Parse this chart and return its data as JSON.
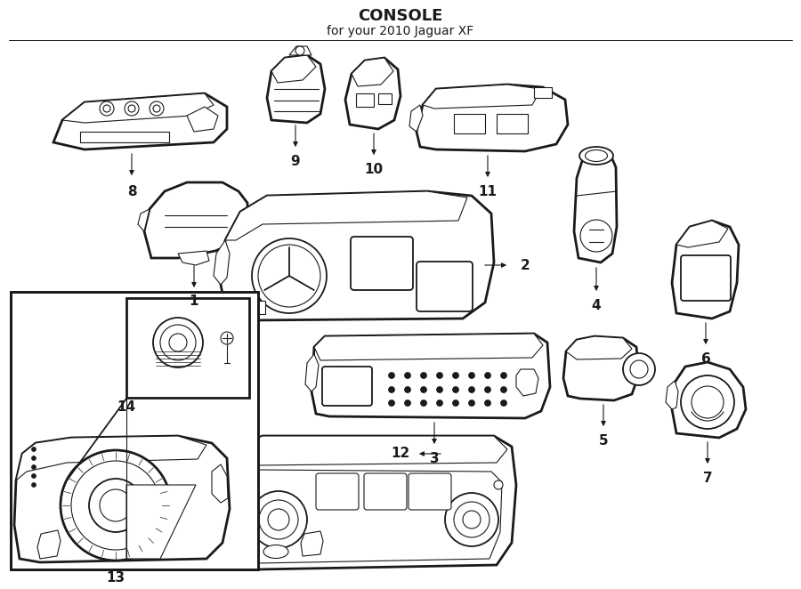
{
  "title": "CONSOLE",
  "subtitle": "for your 2010 Jaguar XF",
  "bg_color": "#ffffff",
  "line_color": "#1a1a1a",
  "fig_width": 9.0,
  "fig_height": 6.62,
  "dpi": 100
}
